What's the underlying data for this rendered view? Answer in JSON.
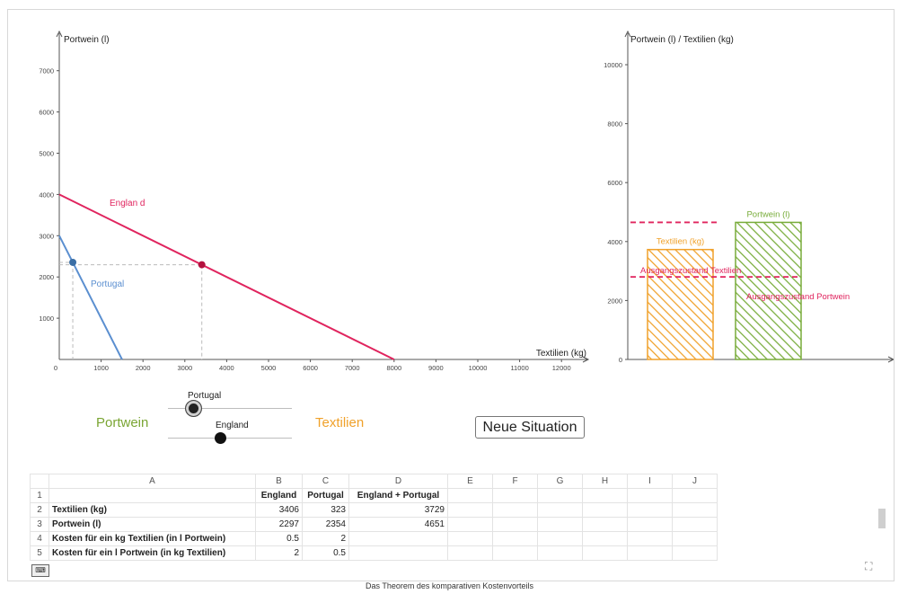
{
  "graph_left": {
    "y_axis_label": "Portwein (l)",
    "x_axis_label": "Textilien (kg)",
    "x_ticks": [
      "0",
      "1000",
      "2000",
      "3000",
      "4000",
      "5000",
      "6000",
      "7000",
      "8000",
      "9000",
      "10000",
      "11000",
      "12000"
    ],
    "y_ticks": [
      "1000",
      "2000",
      "3000",
      "4000",
      "5000",
      "6000",
      "7000"
    ],
    "england_label": "Englan d",
    "portugal_label": "Portugal"
  },
  "graph_right": {
    "y_axis_label": "Portwein (l) / Textilien (kg)",
    "y_ticks": [
      "0",
      "2000",
      "4000",
      "6000",
      "8000",
      "10000"
    ],
    "bar_textilien_label": "Textilien (kg)",
    "bar_portwein_label": "Portwein (l)",
    "ausgang_textilien_label": "Ausgangszustand Textilien",
    "ausgang_portwein_label": "Ausgangszustand Portwein"
  },
  "chart_data": [
    {
      "type": "line",
      "xlabel": "Textilien (kg)",
      "ylabel": "Portwein (l)",
      "xlim": [
        0,
        12500
      ],
      "ylim": [
        0,
        7800
      ],
      "series": [
        {
          "name": "England",
          "color": "#e0245e",
          "x": [
            0,
            8000
          ],
          "y": [
            4000,
            0
          ]
        },
        {
          "name": "Portugal",
          "color": "#5b8fd0",
          "x": [
            0,
            1500
          ],
          "y": [
            3000,
            0
          ]
        }
      ],
      "points": [
        {
          "series": "England",
          "x": 3406,
          "y": 2297,
          "color": "#b3123f"
        },
        {
          "series": "Portugal",
          "x": 323,
          "y": 2354,
          "color": "#3a6ea5"
        }
      ]
    },
    {
      "type": "bar",
      "ylabel": "Portwein (l) / Textilien (kg)",
      "ylim": [
        0,
        10500
      ],
      "categories": [
        "Textilien (kg)",
        "Portwein (l)"
      ],
      "values": [
        3729,
        4651
      ],
      "colors": [
        "#f0a12a",
        "#78ac3a"
      ],
      "reference_lines": [
        {
          "name": "Ausgangszustand Textilien",
          "value": 2800,
          "color": "#e0245e"
        },
        {
          "name": "Ausgangszustand Portwein",
          "value": 4651,
          "color": "#e0245e"
        }
      ]
    }
  ],
  "controls": {
    "portwein_label": "Portwein",
    "textilien_label": "Textilien",
    "slider_portugal_label": "Portugal",
    "slider_england_label": "England",
    "slider_portugal_value": 0.2,
    "slider_england_value": 0.42,
    "neue_situation_label": "Neue Situation"
  },
  "spreadsheet": {
    "columns": [
      "A",
      "B",
      "C",
      "D",
      "E",
      "F",
      "G",
      "H",
      "I",
      "J"
    ],
    "rows": [
      [
        "1",
        "",
        "England",
        "Portugal",
        "England + Portugal",
        "",
        "",
        "",
        "",
        "",
        ""
      ],
      [
        "2",
        "Textilien (kg)",
        "3406",
        "323",
        "3729",
        "",
        "",
        "",
        "",
        "",
        ""
      ],
      [
        "3",
        "Portwein (l)",
        "2297",
        "2354",
        "4651",
        "",
        "",
        "",
        "",
        "",
        ""
      ],
      [
        "4",
        "Kosten für ein kg Textilien (in l Portwein)",
        "0.5",
        "2",
        "",
        "",
        "",
        "",
        "",
        "",
        ""
      ],
      [
        "5",
        "Kosten für ein l Portwein (in kg Textilien)",
        "2",
        "0.5",
        "",
        "",
        "",
        "",
        "",
        "",
        ""
      ]
    ]
  },
  "caption": "Das Theorem des komparativen Kostenvorteils"
}
